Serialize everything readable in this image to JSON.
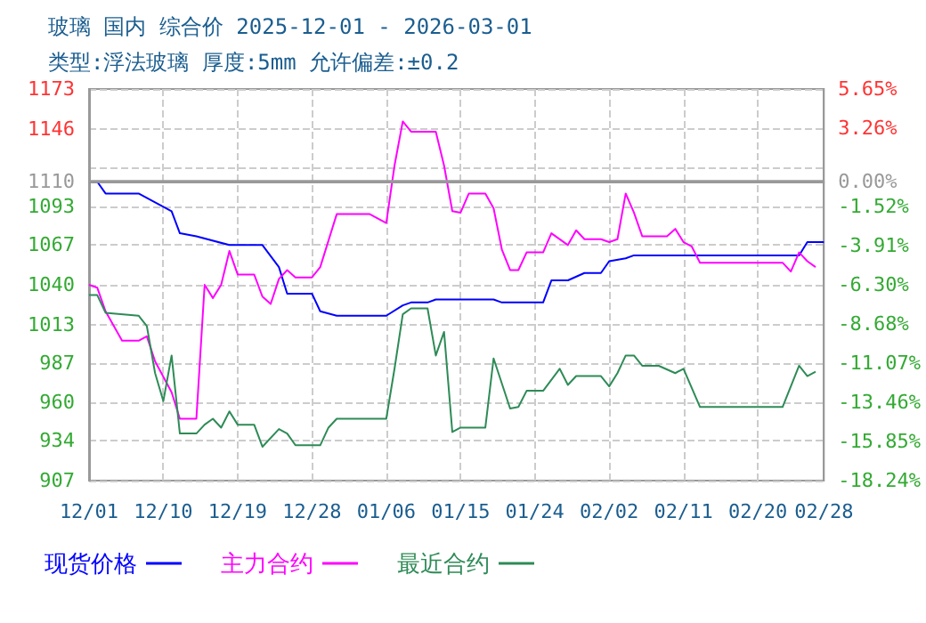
{
  "chart_data": {
    "type": "line",
    "title": "玻璃 国内 综合价 2025-12-01 - 2026-03-01",
    "subtitle": "类型:浮法玻璃 厚度:5mm 允许偏差:±0.2",
    "xlim": [
      "2025-12-01",
      "2026-02-28"
    ],
    "xticks": [
      {
        "value": "2025-12-01",
        "label": "12/01"
      },
      {
        "value": "2025-12-10",
        "label": "12/10"
      },
      {
        "value": "2025-12-19",
        "label": "12/19"
      },
      {
        "value": "2025-12-28",
        "label": "12/28"
      },
      {
        "value": "2026-01-06",
        "label": "01/06"
      },
      {
        "value": "2026-01-15",
        "label": "01/15"
      },
      {
        "value": "2026-01-24",
        "label": "01/24"
      },
      {
        "value": "2026-02-02",
        "label": "02/02"
      },
      {
        "value": "2026-02-11",
        "label": "02/11"
      },
      {
        "value": "2026-02-20",
        "label": "02/20"
      },
      {
        "value": "2026-02-28",
        "label": "02/28"
      }
    ],
    "ylim": [
      907,
      1173
    ],
    "yticks": [
      907,
      934,
      960,
      987,
      1013,
      1040,
      1067,
      1093,
      {
        "value": 1120,
        "label": null
      },
      1146,
      1173
    ],
    "y2lim": [
      -18.24,
      5.65
    ],
    "y2ticks": [
      {
        "value": -18.24,
        "label": "-18.24%"
      },
      {
        "value": -15.85,
        "label": "-15.85%"
      },
      {
        "value": -13.46,
        "label": "-13.46%"
      },
      {
        "value": -11.07,
        "label": "-11.07%"
      },
      {
        "value": -8.68,
        "label": "-8.68%"
      },
      {
        "value": -6.3,
        "label": "-6.30%"
      },
      {
        "value": -3.91,
        "label": "-3.91%"
      },
      {
        "value": -1.52,
        "label": "-1.52%"
      },
      {
        "value": 0.87,
        "label": null
      },
      {
        "value": 3.26,
        "label": "3.26%"
      },
      {
        "value": 5.65,
        "label": "5.65%"
      }
    ],
    "ref_lines": [
      {
        "axis": "y",
        "value": 1110,
        "label": "1110",
        "color": "#999999"
      },
      {
        "axis": "y2",
        "value": 0,
        "label": "0.00%",
        "color": "#999999"
      }
    ],
    "grid": true,
    "legend": "bottom",
    "series": [
      {
        "name": "现货价格",
        "color": "#0000ff",
        "x": [
          "2025-12-01",
          "2025-12-02",
          "2025-12-03",
          "2025-12-07",
          "2025-12-09",
          "2025-12-11",
          "2025-12-12",
          "2025-12-14",
          "2025-12-18",
          "2025-12-22",
          "2025-12-24",
          "2025-12-25",
          "2025-12-28",
          "2025-12-29",
          "2025-12-31",
          "2026-01-06",
          "2026-01-08",
          "2026-01-09",
          "2026-01-11",
          "2026-01-12",
          "2026-01-19",
          "2026-01-20",
          "2026-01-25",
          "2026-01-26",
          "2026-01-28",
          "2026-01-30",
          "2026-02-01",
          "2026-02-02",
          "2026-02-04",
          "2026-02-05",
          "2026-02-25",
          "2026-02-26",
          "2026-02-28"
        ],
        "values": [
          1110,
          1110,
          1102,
          1102,
          1096,
          1090,
          1075,
          1073,
          1067,
          1067,
          1052,
          1034,
          1034,
          1022,
          1019,
          1019,
          1026,
          1028,
          1028,
          1030,
          1030,
          1028,
          1028,
          1043,
          1043,
          1048,
          1048,
          1056,
          1058,
          1060,
          1060,
          1069,
          1069
        ]
      },
      {
        "name": "主力合约",
        "color": "#ff00ff",
        "x": [
          "2025-12-01",
          "2025-12-02",
          "2025-12-03",
          "2025-12-05",
          "2025-12-07",
          "2025-12-08",
          "2025-12-09",
          "2025-12-11",
          "2025-12-12",
          "2025-12-14",
          "2025-12-15",
          "2025-12-16",
          "2025-12-17",
          "2025-12-18",
          "2025-12-19",
          "2025-12-21",
          "2025-12-22",
          "2025-12-23",
          "2025-12-24",
          "2025-12-25",
          "2025-12-26",
          "2025-12-28",
          "2025-12-29",
          "2025-12-31",
          "2026-01-04",
          "2026-01-06",
          "2026-01-07",
          "2026-01-08",
          "2026-01-09",
          "2026-01-12",
          "2026-01-13",
          "2026-01-14",
          "2026-01-15",
          "2026-01-16",
          "2026-01-18",
          "2026-01-19",
          "2026-01-20",
          "2026-01-21",
          "2026-01-22",
          "2026-01-23",
          "2026-01-25",
          "2026-01-26",
          "2026-01-28",
          "2026-01-29",
          "2026-01-30",
          "2026-02-01",
          "2026-02-02",
          "2026-02-03",
          "2026-02-04",
          "2026-02-05",
          "2026-02-06",
          "2026-02-09",
          "2026-02-10",
          "2026-02-11",
          "2026-02-12",
          "2026-02-13",
          "2026-02-23",
          "2026-02-24",
          "2026-02-25",
          "2026-02-26",
          "2026-02-27"
        ],
        "values": [
          1040,
          1038,
          1022,
          1002,
          1002,
          1005,
          988,
          967,
          949,
          949,
          1040,
          1031,
          1040,
          1063,
          1047,
          1047,
          1032,
          1027,
          1044,
          1050,
          1045,
          1045,
          1052,
          1088,
          1088,
          1082,
          1121,
          1151,
          1144,
          1144,
          1121,
          1090,
          1089,
          1102,
          1102,
          1092,
          1064,
          1050,
          1050,
          1062,
          1062,
          1075,
          1067,
          1077,
          1071,
          1071,
          1069,
          1071,
          1102,
          1089,
          1073,
          1073,
          1078,
          1069,
          1066,
          1055,
          1055,
          1049,
          1062,
          1056,
          1052
        ]
      },
      {
        "name": "最近合约",
        "color": "#2e8b57",
        "x": [
          "2025-12-01",
          "2025-12-02",
          "2025-12-03",
          "2025-12-07",
          "2025-12-08",
          "2025-12-09",
          "2025-12-10",
          "2025-12-11",
          "2025-12-12",
          "2025-12-14",
          "2025-12-15",
          "2025-12-16",
          "2025-12-17",
          "2025-12-18",
          "2025-12-19",
          "2025-12-21",
          "2025-12-22",
          "2025-12-24",
          "2025-12-25",
          "2025-12-26",
          "2025-12-29",
          "2025-12-30",
          "2025-12-31",
          "2026-01-06",
          "2026-01-07",
          "2026-01-08",
          "2026-01-09",
          "2026-01-11",
          "2026-01-12",
          "2026-01-13",
          "2026-01-14",
          "2026-01-15",
          "2026-01-18",
          "2026-01-19",
          "2026-01-21",
          "2026-01-22",
          "2026-01-23",
          "2026-01-25",
          "2026-01-27",
          "2026-01-28",
          "2026-01-29",
          "2026-02-01",
          "2026-02-02",
          "2026-02-03",
          "2026-02-04",
          "2026-02-05",
          "2026-02-06",
          "2026-02-08",
          "2026-02-10",
          "2026-02-11",
          "2026-02-13",
          "2026-02-23",
          "2026-02-25",
          "2026-02-26",
          "2026-02-27"
        ],
        "values": [
          1033,
          1033,
          1021,
          1019,
          1012,
          980,
          961,
          992,
          939,
          939,
          945,
          949,
          943,
          954,
          945,
          945,
          930,
          942,
          939,
          931,
          931,
          943,
          949,
          949,
          983,
          1020,
          1024,
          1024,
          992,
          1008,
          940,
          943,
          943,
          990,
          956,
          957,
          968,
          968,
          983,
          972,
          978,
          978,
          971,
          980,
          992,
          992,
          985,
          985,
          980,
          983,
          957,
          957,
          985,
          978,
          981
        ]
      }
    ]
  }
}
